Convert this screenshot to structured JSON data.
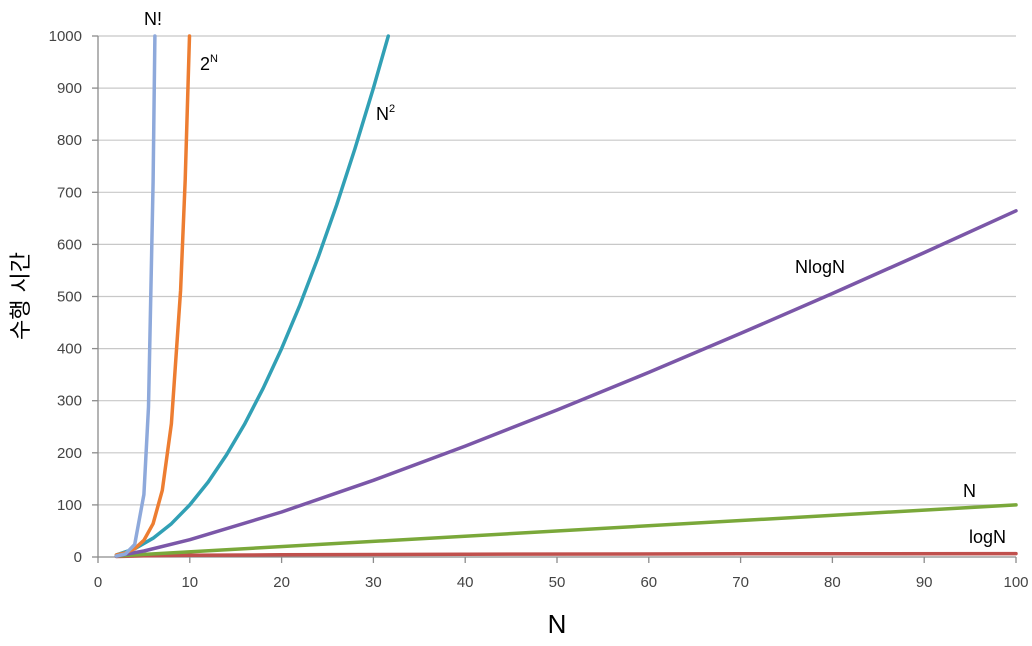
{
  "chart_data": {
    "type": "line",
    "xlabel": "N",
    "ylabel": "수행 시간",
    "xlim": [
      0,
      100
    ],
    "ylim": [
      0,
      1000
    ],
    "x_ticks": [
      "0",
      "10",
      "20",
      "30",
      "40",
      "50",
      "60",
      "70",
      "80",
      "90",
      "100"
    ],
    "y_ticks": [
      "0",
      "100",
      "200",
      "300",
      "400",
      "500",
      "600",
      "700",
      "800",
      "900",
      "1000"
    ],
    "grid": "horizontal",
    "series": [
      {
        "id": "factorial",
        "name": "N!",
        "color": "#8ea9db",
        "points": [
          [
            2,
            2
          ],
          [
            3,
            6
          ],
          [
            4,
            24
          ],
          [
            5,
            120
          ],
          [
            5.5,
            287.9
          ],
          [
            6,
            720
          ],
          [
            6.2,
            1000
          ]
        ]
      },
      {
        "id": "exponential",
        "name": "2",
        "sup": "N",
        "color": "#ed7d31",
        "points": [
          [
            2,
            4
          ],
          [
            3,
            8
          ],
          [
            4,
            16
          ],
          [
            5,
            32
          ],
          [
            6,
            64
          ],
          [
            7,
            128
          ],
          [
            8,
            256
          ],
          [
            9,
            512
          ],
          [
            9.5,
            724
          ],
          [
            9.97,
            1000
          ]
        ]
      },
      {
        "id": "quadratic",
        "name": "N",
        "sup": "2",
        "color": "#31a0b5",
        "points": [
          [
            2,
            4
          ],
          [
            4,
            16
          ],
          [
            6,
            36
          ],
          [
            8,
            64
          ],
          [
            10,
            100
          ],
          [
            12,
            144
          ],
          [
            14,
            196
          ],
          [
            16,
            256
          ],
          [
            18,
            324
          ],
          [
            20,
            400
          ],
          [
            22,
            484
          ],
          [
            24,
            576
          ],
          [
            26,
            676
          ],
          [
            28,
            784
          ],
          [
            30,
            900
          ],
          [
            31.62,
            1000
          ]
        ]
      },
      {
        "id": "nlogn",
        "name": "NlogN",
        "color": "#7b57a8",
        "points": [
          [
            2,
            2
          ],
          [
            5,
            11.6
          ],
          [
            10,
            33.2
          ],
          [
            20,
            86.4
          ],
          [
            30,
            147.2
          ],
          [
            40,
            212.9
          ],
          [
            50,
            282.2
          ],
          [
            60,
            354.4
          ],
          [
            70,
            429.1
          ],
          [
            80,
            505.8
          ],
          [
            90,
            584.3
          ],
          [
            100,
            664.4
          ]
        ]
      },
      {
        "id": "linear",
        "name": "N",
        "color": "#7aa83a",
        "points": [
          [
            2,
            2
          ],
          [
            100,
            100
          ]
        ]
      },
      {
        "id": "log",
        "name": "logN",
        "color": "#c0504d",
        "points": [
          [
            2,
            1
          ],
          [
            5,
            2.3
          ],
          [
            10,
            3.3
          ],
          [
            20,
            4.3
          ],
          [
            40,
            5.3
          ],
          [
            70,
            6.1
          ],
          [
            100,
            6.6
          ]
        ]
      }
    ]
  }
}
